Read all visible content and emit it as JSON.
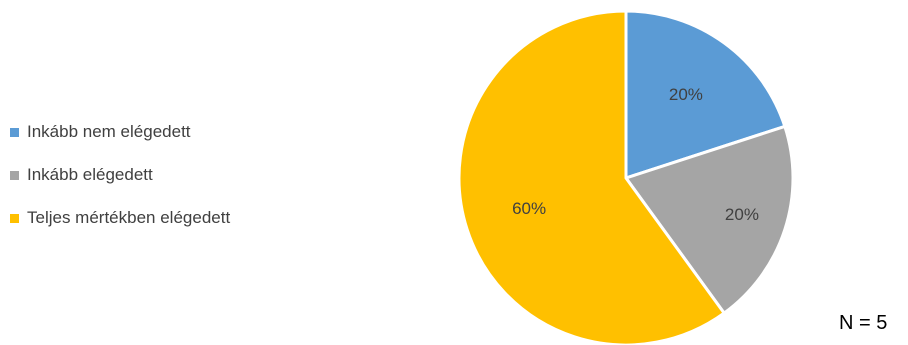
{
  "chart_data": {
    "type": "pie",
    "title": "",
    "categories": [
      "Inkább nem elégedett",
      "Inkább elégedett",
      "Teljes mértékben elégedett"
    ],
    "values": [
      20,
      20,
      60
    ],
    "data_labels": [
      "20%",
      "20%",
      "60%"
    ],
    "colors": [
      "#5b9bd5",
      "#a5a5a5",
      "#ffc000"
    ],
    "legend_placement": "left",
    "start_angle_deg": 0,
    "direction": "clockwise"
  },
  "annotation": {
    "n_label": "N = 5"
  }
}
